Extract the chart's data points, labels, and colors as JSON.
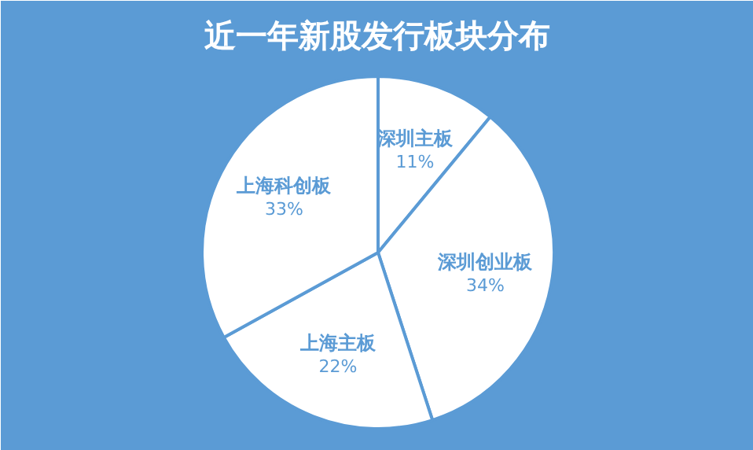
{
  "chart_data": {
    "type": "pie",
    "title": "近一年新股发行板块分布",
    "categories": [
      "深圳主板",
      "深圳创业板",
      "上海主板",
      "上海科创板"
    ],
    "values": [
      11,
      34,
      22,
      33
    ],
    "value_labels": [
      "11%",
      "34%",
      "22%",
      "33%"
    ],
    "colors": [
      "#ffffff",
      "#ffffff",
      "#ffffff",
      "#ffffff"
    ]
  }
}
